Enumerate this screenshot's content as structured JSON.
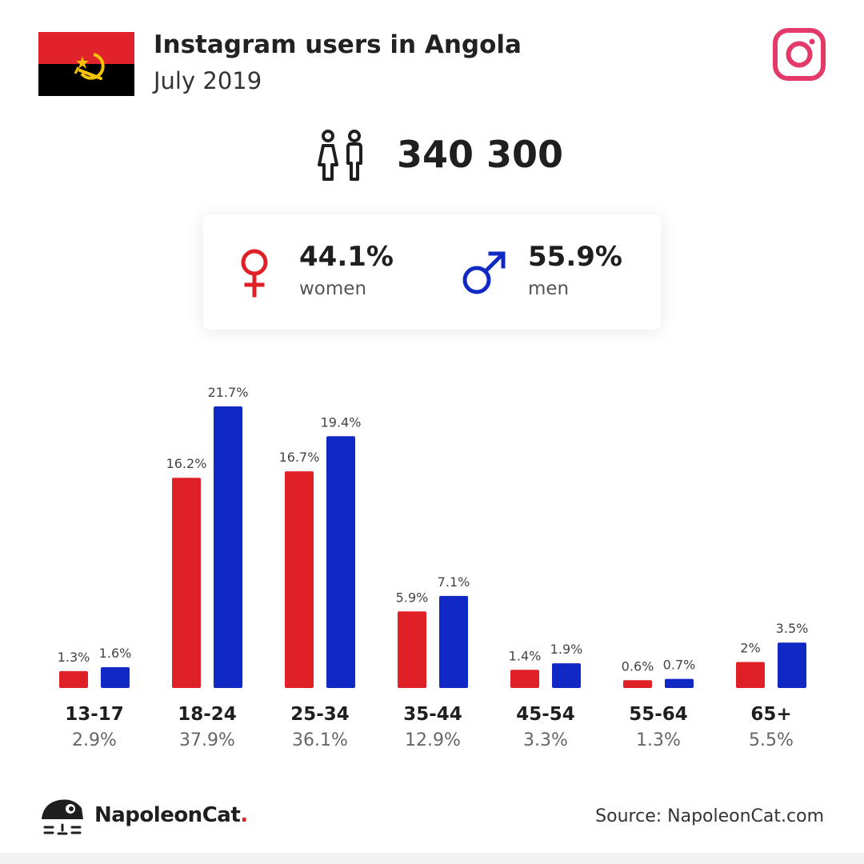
{
  "header": {
    "title": "Instagram users in Angola",
    "subtitle": "July 2019"
  },
  "total": {
    "value": "340 300"
  },
  "gender": {
    "women": {
      "pct": "44.1%",
      "label": "women"
    },
    "men": {
      "pct": "55.9%",
      "label": "men"
    }
  },
  "colors": {
    "women": "#e02027",
    "men": "#1029c4",
    "instagram": "#e33a6a"
  },
  "icons": {
    "flag": "angola-flag-icon",
    "platform": "instagram-icon",
    "total": "people-icon",
    "women": "female-symbol-icon",
    "men": "male-symbol-icon",
    "logo": "napoleoncat-logo-icon"
  },
  "chart_data": {
    "type": "bar",
    "categories": [
      "13-17",
      "18-24",
      "25-34",
      "35-44",
      "45-54",
      "55-64",
      "65+"
    ],
    "category_totals": [
      "2.9%",
      "37.9%",
      "36.1%",
      "12.9%",
      "3.3%",
      "1.3%",
      "5.5%"
    ],
    "series": [
      {
        "name": "women",
        "values": [
          1.3,
          16.2,
          16.7,
          5.9,
          1.4,
          0.6,
          2
        ],
        "labels": [
          "1.3%",
          "16.2%",
          "16.7%",
          "5.9%",
          "1.4%",
          "0.6%",
          "2%"
        ]
      },
      {
        "name": "men",
        "values": [
          1.6,
          21.7,
          19.4,
          7.1,
          1.9,
          0.7,
          3.5
        ],
        "labels": [
          "1.6%",
          "21.7%",
          "19.4%",
          "7.1%",
          "1.9%",
          "0.7%",
          "3.5%"
        ]
      }
    ],
    "title": "",
    "xlabel": "",
    "ylabel": "",
    "ylim": [
      0,
      21.7
    ],
    "grid": false
  },
  "footer": {
    "brand_name": "NapoleonCat",
    "brand_dot": ".",
    "source": "Source: NapoleonCat.com"
  }
}
